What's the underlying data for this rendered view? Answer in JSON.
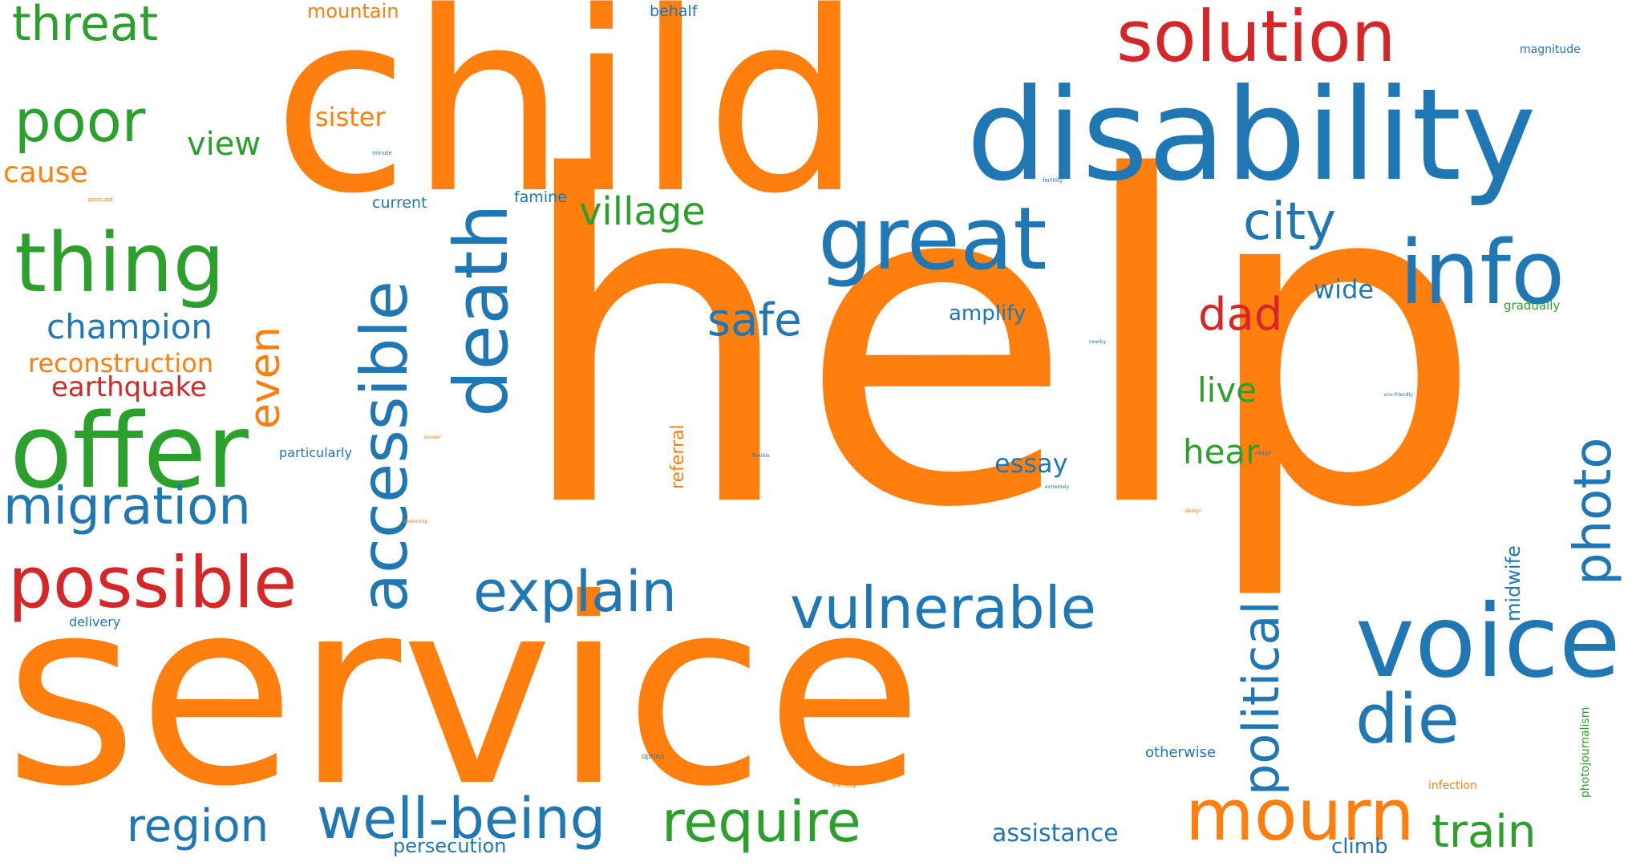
{
  "colors": {
    "orange": "#ff7f0e",
    "blue": "#1f77b4",
    "green": "#2ca02c",
    "red": "#d62728"
  },
  "words": {
    "help": "help",
    "service": "service",
    "child": "child",
    "disability": "disability",
    "threat": "threat",
    "mountain": "mountain",
    "behalf": "behalf",
    "solution": "solution",
    "magnitude": "magnitude",
    "poor": "poor",
    "sister": "sister",
    "view": "view",
    "cause": "cause",
    "minute": "minute",
    "postcard": "postcard",
    "current": "current",
    "famine": "famine",
    "village": "village",
    "fertility": "fertility",
    "thing": "thing",
    "great": "great",
    "city": "city",
    "info": "info",
    "death": "death",
    "accessible": "accessible",
    "wide": "wide",
    "gradually": "gradually",
    "champion": "champion",
    "safe": "safe",
    "amplify": "amplify",
    "dad": "dad",
    "even": "even",
    "nearby": "nearby",
    "reconstruction": "reconstruction",
    "earthquake": "earthquake",
    "live": "live",
    "offer": "offer",
    "eco_friendly": "eco-friendly",
    "photo": "photo",
    "answer": "answer",
    "particularly": "particularly",
    "referral": "referral",
    "flexible": "flexible",
    "essay": "essay",
    "hear": "hear",
    "range": "range",
    "extremely": "extremely",
    "migration": "migration",
    "design": "design",
    "political": "political",
    "midwife": "midwife",
    "possible": "possible",
    "explain": "explain",
    "vulnerable": "vulnerable",
    "voice": "voice",
    "delivery": "delivery",
    "die": "die",
    "photojournalism": "photojournalism",
    "option": "option",
    "otherwise": "otherwise",
    "variety": "variety",
    "infection": "infection",
    "region": "region",
    "well_being": "well-being",
    "require": "require",
    "mourn": "mourn",
    "train": "train",
    "assistance": "assistance",
    "persecution": "persecution",
    "climb": "climb",
    "tiny_orange": "leadership"
  }
}
